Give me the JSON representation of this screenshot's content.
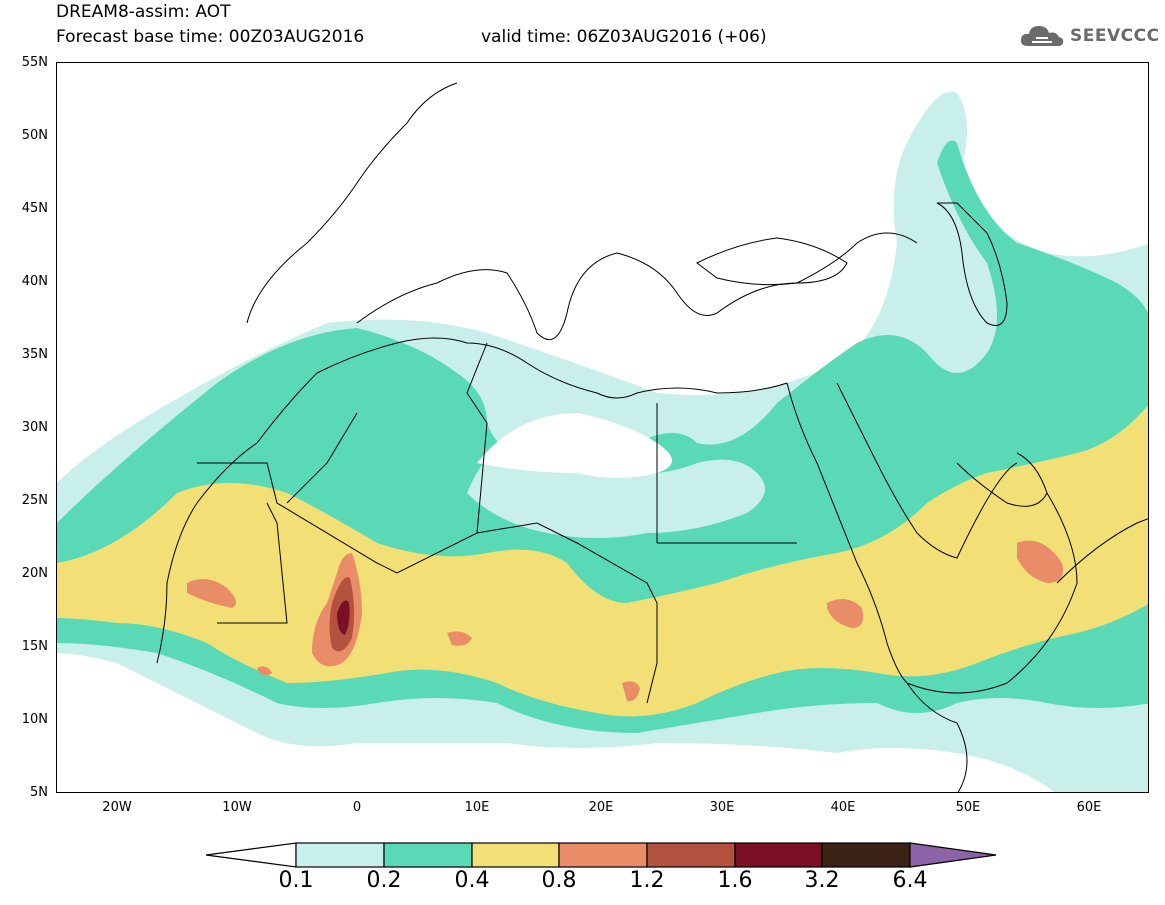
{
  "header": {
    "title": "DREAM8-assim: AOT",
    "base_time": "Forecast base time: 00Z03AUG2016",
    "valid_time": "valid time: 06Z03AUG2016 (+06)"
  },
  "logo": {
    "text": "SEEVCCC",
    "icon": "cloud-icon"
  },
  "map": {
    "lat_labels": [
      "55N",
      "50N",
      "45N",
      "40N",
      "35N",
      "30N",
      "25N",
      "20N",
      "15N",
      "10N",
      "5N"
    ],
    "lon_labels": [
      "20W",
      "10W",
      "0",
      "10E",
      "20E",
      "30E",
      "40E",
      "50E",
      "60E"
    ]
  },
  "colorbar": {
    "labels": [
      "0.1",
      "0.2",
      "0.4",
      "0.8",
      "1.2",
      "1.6",
      "3.2",
      "6.4"
    ],
    "colors": [
      "#ffffff",
      "#c8efe9",
      "#5ad9b7",
      "#f2e077",
      "#e88d67",
      "#b5513f",
      "#7a0f25",
      "#3a2314",
      "#8b63a6"
    ]
  }
}
